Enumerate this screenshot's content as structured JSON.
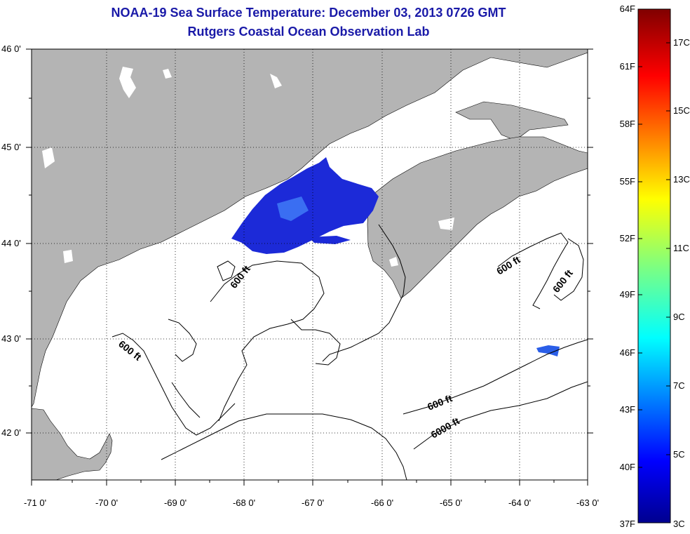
{
  "header": {
    "title": "NOAA-19 Sea Surface Temperature:  December 03, 2013 0726 GMT",
    "subtitle": "Rutgers Coastal Ocean Observation Lab"
  },
  "map": {
    "lat_labels": [
      "46 0'",
      "45 0'",
      "44 0'",
      "43 0'",
      "42 0'"
    ],
    "lon_labels": [
      "-71 0'",
      "-70 0'",
      "-69 0'",
      "-68 0'",
      "-67 0'",
      "-66 0'",
      "-65 0'",
      "-64 0'",
      "-63 0'"
    ],
    "contour_labels": [
      "600 ft",
      "600 ft",
      "600 ft",
      "600 ft",
      "600 ft",
      "6000 ft"
    ],
    "colors": {
      "land": "#b4b4b4",
      "sst_blob": "#1c2ad8",
      "sst_blob_light": "#3a6ef2"
    }
  },
  "colorbar": {
    "f_labels": [
      "64F",
      "61F",
      "58F",
      "55F",
      "52F",
      "49F",
      "46F",
      "43F",
      "40F",
      "37F"
    ],
    "c_labels": [
      "17C",
      "15C",
      "13C",
      "11C",
      "9C",
      "7C",
      "5C",
      "3C"
    ]
  }
}
